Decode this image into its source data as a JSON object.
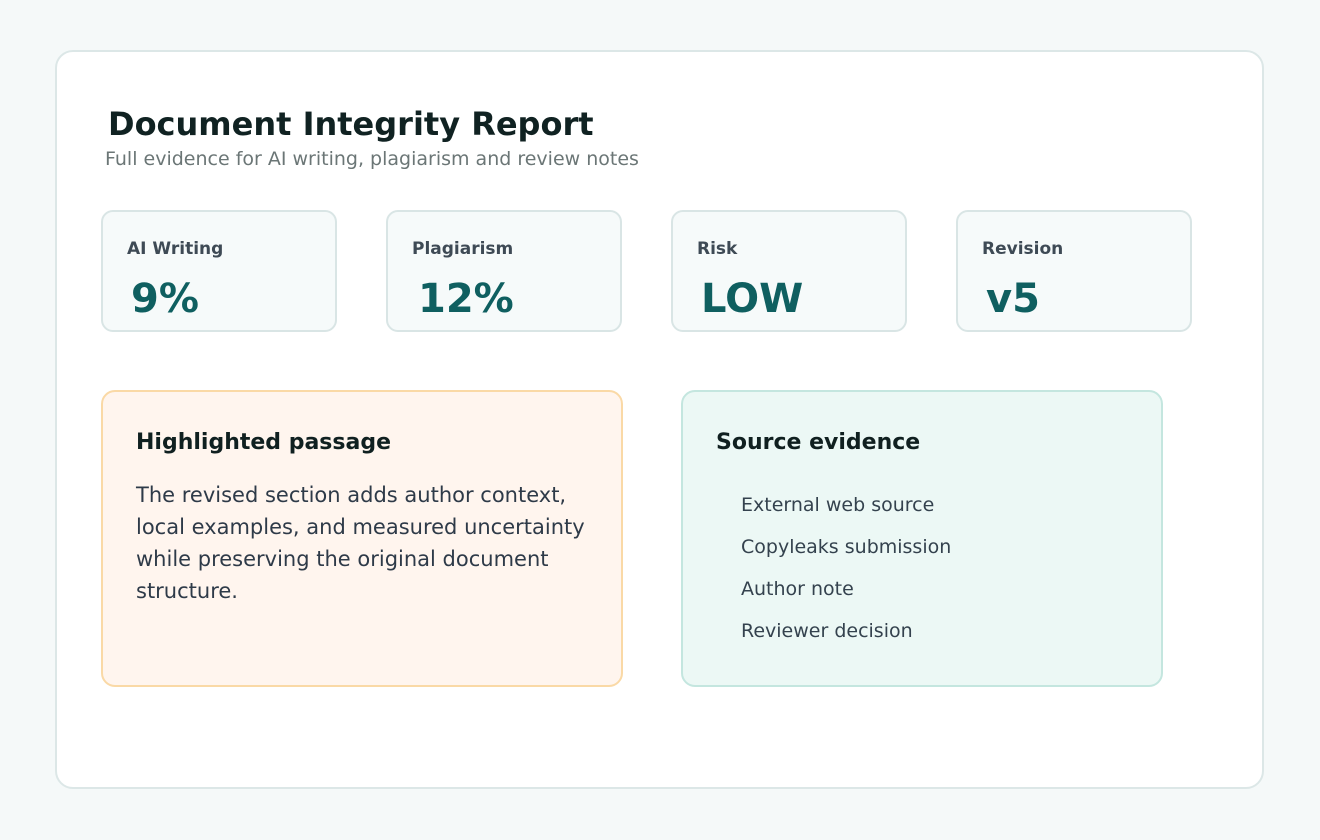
{
  "report": {
    "title": "Document Integrity Report",
    "subtitle": "Full evidence for AI writing, plagiarism and review notes"
  },
  "metrics": [
    {
      "label": "AI Writing",
      "value": "9%"
    },
    {
      "label": "Plagiarism",
      "value": "12%"
    },
    {
      "label": "Risk",
      "value": "LOW"
    },
    {
      "label": "Revision",
      "value": "v5"
    }
  ],
  "passage": {
    "title": "Highlighted passage",
    "body": "The revised section adds author context, local examples, and measured uncertainty while preserving the original document structure."
  },
  "evidence": {
    "title": "Source evidence",
    "items": [
      "External web source",
      "Copyleaks submission",
      "Author note",
      "Reviewer decision"
    ]
  },
  "colors": {
    "accent": "#0f5f60",
    "passage_background": "#fff5ee",
    "passage_border": "#fad9a6",
    "evidence_background": "#ecf8f5",
    "evidence_border": "#c4e6df"
  }
}
